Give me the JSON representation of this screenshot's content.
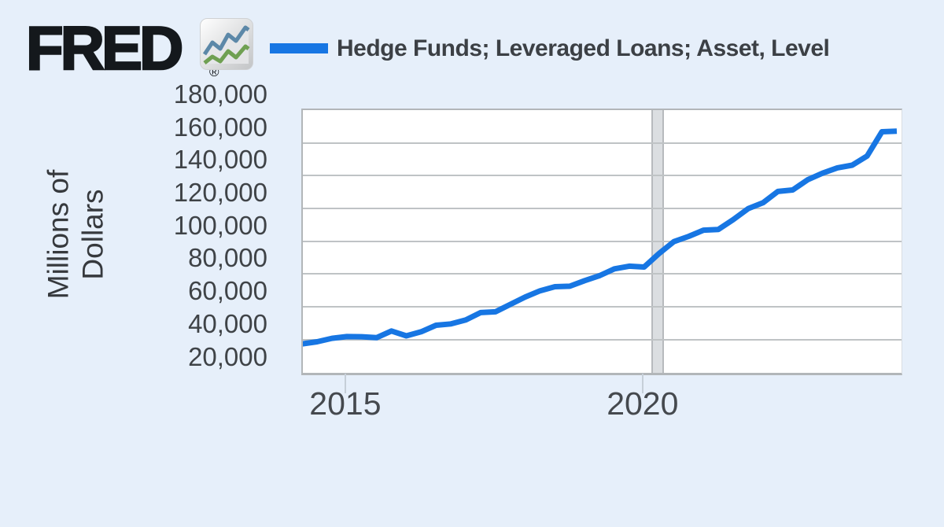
{
  "header": {
    "logo_text": "FRED",
    "registered_mark": "®",
    "logo_icon": "fred-sparkline-icon"
  },
  "legend": {
    "series_label": "Hedge Funds; Leveraged Loans; Asset, Level",
    "swatch_color": "#1776e3"
  },
  "colors": {
    "background": "#e6effa",
    "plot_background": "#ffffff",
    "gridline": "#bfc3c5",
    "plot_border": "#b2b6b9",
    "recession_band": "#dbdee1",
    "series_line": "#1776e3",
    "axis_text": "#3f4347",
    "logo_text": "#14181c",
    "icon_blue": "#5c88a8",
    "icon_green": "#6fa052"
  },
  "chart_data": {
    "type": "line",
    "title": "",
    "ylabel": "Millions of Dollars",
    "ylabel_lines": [
      "Millions of",
      "Dollars"
    ],
    "xlabel": "",
    "grid": true,
    "legend_position": "top",
    "ylim": [
      20000,
      180000
    ],
    "xlim": [
      2014.26,
      2024.33
    ],
    "yticks": [
      20000,
      40000,
      60000,
      80000,
      100000,
      120000,
      140000,
      160000,
      180000
    ],
    "ytick_labels": [
      "20,000",
      "40,000",
      "60,000",
      "80,000",
      "100,000",
      "120,000",
      "140,000",
      "160,000",
      "180,000"
    ],
    "xticks": [
      2015,
      2020
    ],
    "xtick_labels": [
      "2015",
      "2020"
    ],
    "recession_bands": [
      {
        "start": 2020.12,
        "end": 2020.33
      }
    ],
    "series": [
      {
        "name": "Hedge Funds; Leveraged Loans; Asset, Level",
        "color": "#1776e3",
        "frequency": "quarterly",
        "x": [
          2014.25,
          2014.5,
          2014.75,
          2015.0,
          2015.25,
          2015.5,
          2015.75,
          2016.0,
          2016.25,
          2016.5,
          2016.75,
          2017.0,
          2017.25,
          2017.5,
          2017.75,
          2018.0,
          2018.25,
          2018.5,
          2018.75,
          2019.0,
          2019.25,
          2019.5,
          2019.75,
          2020.0,
          2020.25,
          2020.5,
          2020.75,
          2021.0,
          2021.25,
          2021.5,
          2021.75,
          2022.0,
          2022.25,
          2022.5,
          2022.75,
          2023.0,
          2023.25,
          2023.5,
          2023.75,
          2024.0,
          2024.25
        ],
        "values": [
          37400,
          38700,
          40800,
          41900,
          41800,
          41200,
          45300,
          42300,
          44800,
          48800,
          49600,
          52000,
          56500,
          57000,
          61500,
          66000,
          69800,
          72300,
          72600,
          76000,
          79000,
          83200,
          84800,
          84300,
          92500,
          99800,
          103000,
          106800,
          107200,
          113200,
          119900,
          123500,
          130400,
          131300,
          137500,
          141500,
          144800,
          146400,
          152000,
          166800,
          167200
        ]
      }
    ]
  }
}
